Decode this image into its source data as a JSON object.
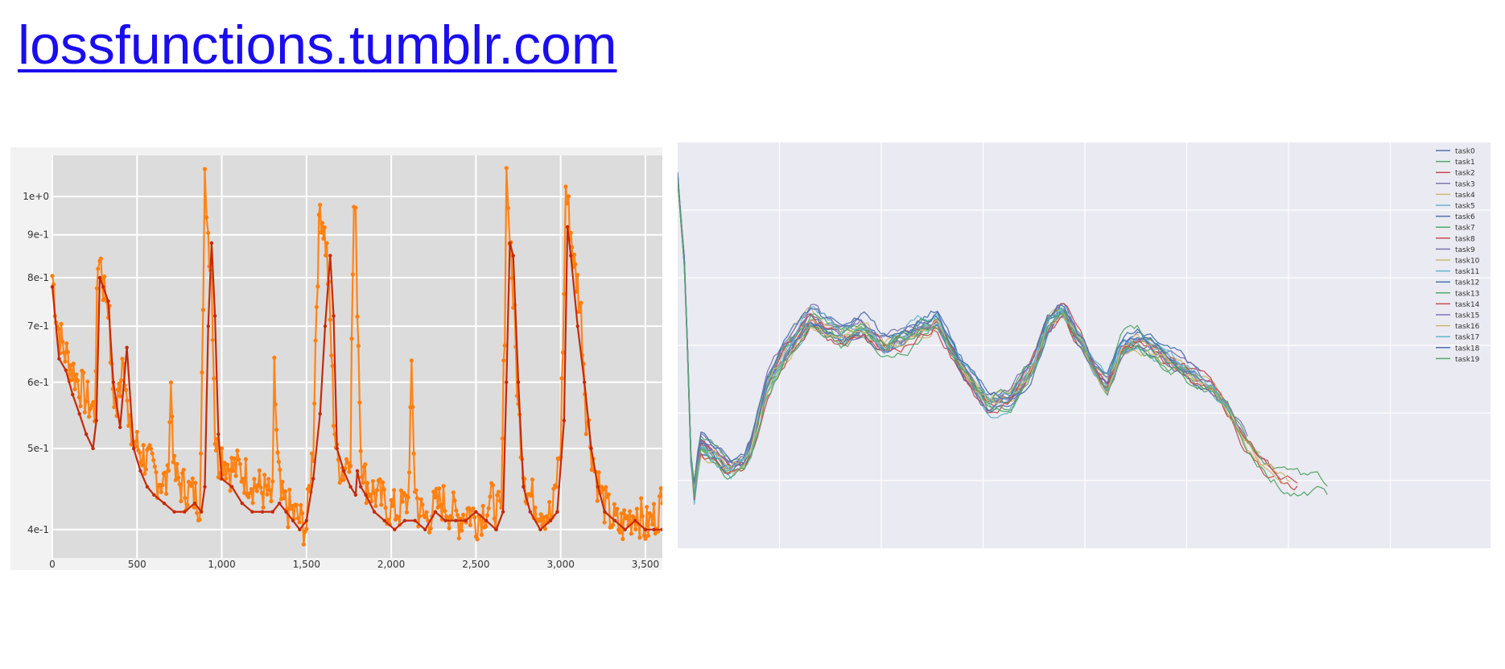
{
  "header": {
    "link_text": "lossfunctions.tumblr.com"
  },
  "colors": {
    "link": "#1a0dee",
    "raw_loss": "#ff7f0e",
    "smoothed_loss": "#c42a08",
    "left_plot_bg": "#dcdcdc",
    "right_plot_bg": "#eaeaf2"
  },
  "chart_data": [
    {
      "type": "line",
      "yscale": "log",
      "grid": true,
      "xlim": [
        0,
        3600
      ],
      "ylim": [
        0.37,
        1.12
      ],
      "x_ticks": [
        0,
        500,
        1000,
        1500,
        2000,
        2500,
        3000,
        3500
      ],
      "x_tick_labels": [
        "0",
        "500",
        "1,000",
        "1,500",
        "2,000",
        "2,500",
        "3,000",
        "3,500"
      ],
      "y_ticks": [
        0.4,
        0.5,
        0.6,
        0.7,
        0.8,
        0.9,
        1.0
      ],
      "y_tick_labels": [
        "4e-1",
        "5e-1",
        "6e-1",
        "7e-1",
        "8e-1",
        "9e-1",
        "1e+0"
      ],
      "series": [
        {
          "style": "raw",
          "color": "#ff7f0e",
          "x": [
            0,
            30,
            60,
            100,
            150,
            200,
            250,
            270,
            280,
            300,
            330,
            350,
            380,
            400,
            420,
            450,
            500,
            560,
            620,
            680,
            700,
            720,
            760,
            820,
            870,
            890,
            900,
            910,
            920,
            940,
            960,
            980,
            1000,
            1050,
            1100,
            1150,
            1200,
            1260,
            1300,
            1310,
            1330,
            1350,
            1400,
            1450,
            1500,
            1540,
            1560,
            1580,
            1600,
            1620,
            1640,
            1660,
            1680,
            1720,
            1760,
            1780,
            1790,
            1800,
            1820,
            1840,
            1860,
            1900,
            1950,
            2000,
            2050,
            2100,
            2120,
            2140,
            2160,
            2200,
            2250,
            2300,
            2350,
            2400,
            2450,
            2500,
            2550,
            2600,
            2650,
            2670,
            2680,
            2690,
            2700,
            2720,
            2750,
            2780,
            2800,
            2850,
            2900,
            2950,
            3000,
            3020,
            3030,
            3040,
            3060,
            3080,
            3100,
            3120,
            3150,
            3200,
            3250,
            3300,
            3350,
            3400,
            3450,
            3500,
            3550,
            3600
          ],
          "y": [
            0.8,
            0.7,
            0.66,
            0.63,
            0.6,
            0.57,
            0.55,
            0.82,
            0.86,
            0.78,
            0.75,
            0.6,
            0.55,
            0.6,
            0.66,
            0.52,
            0.5,
            0.48,
            0.46,
            0.45,
            0.59,
            0.46,
            0.45,
            0.44,
            0.43,
            0.7,
            1.03,
            0.98,
            0.9,
            0.8,
            0.52,
            0.48,
            0.49,
            0.47,
            0.47,
            0.46,
            0.45,
            0.44,
            0.43,
            0.61,
            0.48,
            0.43,
            0.42,
            0.41,
            0.4,
            0.5,
            0.75,
            0.97,
            0.92,
            0.85,
            0.7,
            0.55,
            0.48,
            0.47,
            0.5,
            0.96,
            0.92,
            0.75,
            0.5,
            0.46,
            0.45,
            0.44,
            0.43,
            0.42,
            0.42,
            0.43,
            0.6,
            0.45,
            0.42,
            0.41,
            0.42,
            0.43,
            0.42,
            0.41,
            0.42,
            0.41,
            0.42,
            0.43,
            0.41,
            0.7,
            1.1,
            0.95,
            0.92,
            0.75,
            0.55,
            0.48,
            0.44,
            0.43,
            0.42,
            0.41,
            0.5,
            0.75,
            1.03,
            0.98,
            0.9,
            0.82,
            0.78,
            0.72,
            0.55,
            0.47,
            0.43,
            0.41,
            0.4,
            0.41,
            0.42,
            0.4,
            0.41,
            0.43
          ]
        },
        {
          "style": "smoothed",
          "color": "#c42a08",
          "x": [
            0,
            40,
            80,
            120,
            160,
            200,
            240,
            260,
            280,
            300,
            330,
            360,
            400,
            440,
            480,
            520,
            560,
            600,
            660,
            720,
            780,
            840,
            880,
            900,
            920,
            940,
            960,
            980,
            1000,
            1060,
            1120,
            1180,
            1240,
            1300,
            1340,
            1380,
            1420,
            1460,
            1500,
            1540,
            1580,
            1610,
            1640,
            1660,
            1680,
            1720,
            1760,
            1790,
            1800,
            1820,
            1850,
            1900,
            1960,
            2020,
            2080,
            2140,
            2200,
            2260,
            2320,
            2380,
            2440,
            2500,
            2560,
            2620,
            2660,
            2680,
            2700,
            2720,
            2750,
            2780,
            2820,
            2880,
            2940,
            2980,
            3020,
            3040,
            3060,
            3100,
            3140,
            3180,
            3220,
            3260,
            3320,
            3380,
            3440,
            3500,
            3550,
            3600
          ],
          "y": [
            0.78,
            0.64,
            0.62,
            0.58,
            0.55,
            0.52,
            0.5,
            0.54,
            0.8,
            0.78,
            0.75,
            0.6,
            0.53,
            0.66,
            0.5,
            0.47,
            0.45,
            0.44,
            0.43,
            0.42,
            0.42,
            0.43,
            0.42,
            0.45,
            0.7,
            0.88,
            0.72,
            0.52,
            0.46,
            0.45,
            0.43,
            0.42,
            0.42,
            0.42,
            0.43,
            0.42,
            0.41,
            0.4,
            0.41,
            0.46,
            0.55,
            0.7,
            0.85,
            0.72,
            0.5,
            0.47,
            0.45,
            0.44,
            0.47,
            0.45,
            0.44,
            0.42,
            0.41,
            0.4,
            0.41,
            0.41,
            0.4,
            0.42,
            0.41,
            0.41,
            0.41,
            0.42,
            0.41,
            0.4,
            0.42,
            0.6,
            0.88,
            0.85,
            0.6,
            0.45,
            0.42,
            0.4,
            0.41,
            0.42,
            0.54,
            0.92,
            0.85,
            0.7,
            0.6,
            0.5,
            0.45,
            0.42,
            0.41,
            0.4,
            0.41,
            0.4,
            0.4,
            0.4
          ]
        }
      ]
    },
    {
      "type": "line",
      "grid": true,
      "legend_position": "top-right",
      "xlim": [
        0,
        100
      ],
      "ylim": [
        0,
        100
      ],
      "series_names": [
        "task0",
        "task1",
        "task2",
        "task3",
        "task4",
        "task5",
        "task6",
        "task7",
        "task8",
        "task9",
        "task10",
        "task11",
        "task12",
        "task13",
        "task14",
        "task15",
        "task16",
        "task17",
        "task18",
        "task19"
      ],
      "series_colors": [
        "#4c72b0",
        "#55a868",
        "#c44e52",
        "#8172b2",
        "#ccb974",
        "#64b5cd",
        "#4c72b0",
        "#55a868",
        "#c44e52",
        "#8172b2",
        "#ccb974",
        "#64b5cd",
        "#4c72b0",
        "#55a868",
        "#c44e52",
        "#8172b2",
        "#ccb974",
        "#64b5cd",
        "#4c72b0",
        "#55a868"
      ],
      "series_end_x": [
        71,
        72,
        84,
        77,
        79,
        66,
        72,
        70,
        84,
        77,
        82,
        76,
        69,
        88,
        81,
        74,
        83,
        75,
        70,
        88
      ],
      "mean_curve": {
        "x": [
          0,
          1,
          2,
          3,
          5,
          7,
          9,
          10,
          12,
          15,
          18,
          22,
          25,
          28,
          32,
          35,
          38,
          40,
          42,
          45,
          48,
          50,
          52,
          54,
          56,
          58,
          60,
          62,
          64,
          66,
          68,
          70,
          72,
          74,
          76,
          78,
          80,
          82,
          84,
          86,
          88
        ],
        "y": [
          95,
          70,
          8,
          25,
          22,
          18,
          20,
          25,
          40,
          50,
          58,
          52,
          55,
          50,
          54,
          58,
          46,
          40,
          35,
          37,
          45,
          56,
          60,
          53,
          45,
          40,
          50,
          52,
          50,
          47,
          45,
          42,
          40,
          35,
          28,
          22,
          18,
          15,
          14,
          13,
          12
        ]
      }
    }
  ]
}
